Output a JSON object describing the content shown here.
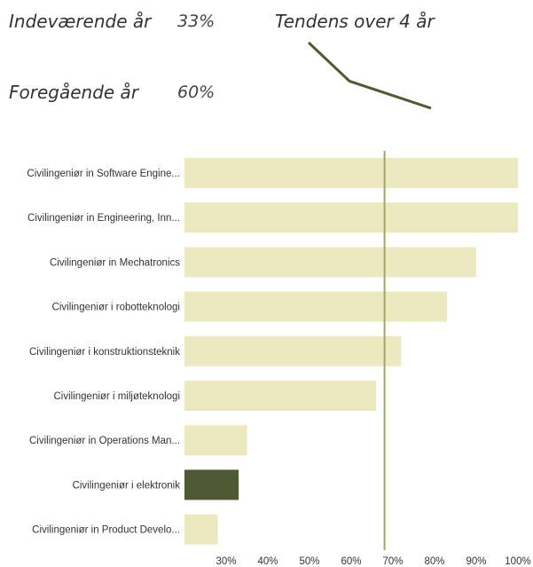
{
  "header": {
    "current_label": "Indeværende år",
    "current_value": "33%",
    "trend_label": "Tendens over 4 år",
    "previous_label": "Foregående år",
    "previous_value": "60%"
  },
  "colors": {
    "bar": "#ece8bf",
    "highlight_bar": "#4d5a33",
    "reference_line": "#a3a66a",
    "trend_line": "#4d5a33"
  },
  "trend_data": {
    "type": "line",
    "x": [
      1,
      2,
      3,
      4
    ],
    "values": [
      95,
      78,
      72,
      66
    ]
  },
  "chart_data": {
    "type": "bar",
    "orientation": "horizontal",
    "categories": [
      "Civilingeniør in Software Engine...",
      "Civilingeniør in Engineering, Inn...",
      "Civilingeniør in Mechatronics",
      "Civilingeniør i robotteknologi",
      "Civilingeniør i konstruktionsteknik",
      "Civilingeniør i miljøteknologi",
      "Civilingeniør in Operations Man...",
      "Civilingeniør i elektronik",
      "Civilingeniør in Product Develo..."
    ],
    "values": [
      100,
      100,
      90,
      83,
      72,
      66,
      35,
      33,
      28
    ],
    "highlight": "Civilingeniør i elektronik",
    "reference_value": 68,
    "xlim": [
      20,
      100
    ],
    "xticks": [
      30,
      40,
      50,
      60,
      70,
      80,
      90,
      100
    ],
    "xtick_labels": [
      "30%",
      "40%",
      "50%",
      "60%",
      "70%",
      "80%",
      "90%",
      "100%"
    ]
  }
}
